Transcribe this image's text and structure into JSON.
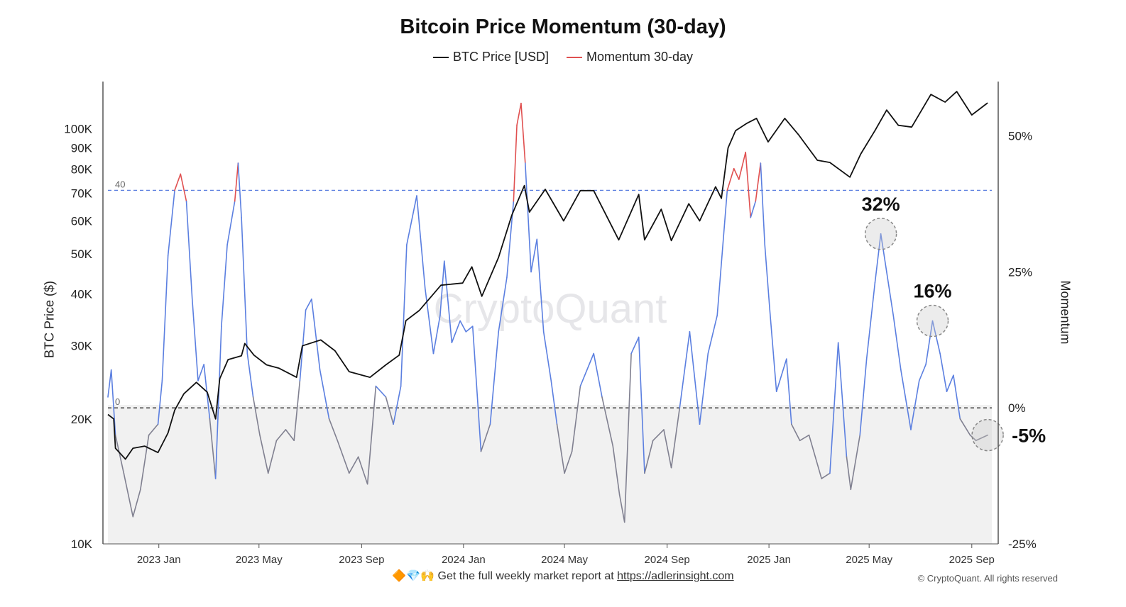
{
  "chart_data": {
    "type": "line",
    "title": "Bitcoin Price Momentum (30-day)",
    "legend": [
      {
        "label": "BTC Price [USD]",
        "color": "#111111"
      },
      {
        "label": "Momentum 30-day",
        "color": "#e05050"
      }
    ],
    "ylabel_left": "BTC Price ($)",
    "ylabel_right": "Momentum",
    "left_axis": {
      "scale": "log",
      "range": [
        10000,
        130000
      ],
      "ticks": [
        {
          "v": 10000,
          "label": "10K"
        },
        {
          "v": 20000,
          "label": "20K"
        },
        {
          "v": 30000,
          "label": "30K"
        },
        {
          "v": 40000,
          "label": "40K"
        },
        {
          "v": 50000,
          "label": "50K"
        },
        {
          "v": 60000,
          "label": "60K"
        },
        {
          "v": 70000,
          "label": "70K"
        },
        {
          "v": 80000,
          "label": "80K"
        },
        {
          "v": 90000,
          "label": "90K"
        },
        {
          "v": 100000,
          "label": "100K"
        }
      ]
    },
    "right_axis": {
      "scale": "linear",
      "range": [
        -25,
        60
      ],
      "ticks": [
        {
          "v": -25,
          "label": "-25%"
        },
        {
          "v": 0,
          "label": "0%"
        },
        {
          "v": 25,
          "label": "25%"
        },
        {
          "v": 50,
          "label": "50%"
        }
      ]
    },
    "x_axis": {
      "range": [
        "2022-11-01",
        "2025-09-25"
      ],
      "ticks": [
        {
          "date": "2023-01-01",
          "label": "2023 Jan"
        },
        {
          "date": "2023-05-01",
          "label": "2023 May"
        },
        {
          "date": "2023-09-01",
          "label": "2023 Sep"
        },
        {
          "date": "2024-01-01",
          "label": "2024 Jan"
        },
        {
          "date": "2024-05-01",
          "label": "2024 May"
        },
        {
          "date": "2024-09-01",
          "label": "2024 Sep"
        },
        {
          "date": "2025-01-01",
          "label": "2025 Jan"
        },
        {
          "date": "2025-05-01",
          "label": "2025 May"
        },
        {
          "date": "2025-09-01",
          "label": "2025 Sep"
        }
      ]
    },
    "reference_lines": [
      {
        "value": 40,
        "label": "40",
        "color": "#5b7fe0",
        "style": "dashed"
      },
      {
        "value": 0,
        "label": "0",
        "color": "#333333",
        "style": "dashed"
      }
    ],
    "momentum_colors": {
      "above_40": "#e05050",
      "positive": "#5b7fe0",
      "negative": "#808090"
    },
    "price_series": {
      "name": "BTC Price [USD]",
      "color": "#111111",
      "points": [
        [
          "2022-11-01",
          20500
        ],
        [
          "2022-11-08",
          20000
        ],
        [
          "2022-11-10",
          17000
        ],
        [
          "2022-11-22",
          16000
        ],
        [
          "2022-12-01",
          17000
        ],
        [
          "2022-12-15",
          17200
        ],
        [
          "2022-12-31",
          16600
        ],
        [
          "2023-01-12",
          18500
        ],
        [
          "2023-01-20",
          21000
        ],
        [
          "2023-01-31",
          23000
        ],
        [
          "2023-02-15",
          24500
        ],
        [
          "2023-02-28",
          23200
        ],
        [
          "2023-03-10",
          20000
        ],
        [
          "2023-03-15",
          25000
        ],
        [
          "2023-03-25",
          27800
        ],
        [
          "2023-04-10",
          28400
        ],
        [
          "2023-04-14",
          30400
        ],
        [
          "2023-04-25",
          28500
        ],
        [
          "2023-05-10",
          27000
        ],
        [
          "2023-05-25",
          26500
        ],
        [
          "2023-06-15",
          25200
        ],
        [
          "2023-06-22",
          30000
        ],
        [
          "2023-07-14",
          31000
        ],
        [
          "2023-07-31",
          29200
        ],
        [
          "2023-08-17",
          26000
        ],
        [
          "2023-09-11",
          25200
        ],
        [
          "2023-09-30",
          27000
        ],
        [
          "2023-10-16",
          28500
        ],
        [
          "2023-10-24",
          34500
        ],
        [
          "2023-11-09",
          36500
        ],
        [
          "2023-12-05",
          42000
        ],
        [
          "2023-12-31",
          42500
        ],
        [
          "2024-01-11",
          46500
        ],
        [
          "2024-01-23",
          39500
        ],
        [
          "2024-02-12",
          49000
        ],
        [
          "2024-02-28",
          62000
        ],
        [
          "2024-03-14",
          73000
        ],
        [
          "2024-03-20",
          63000
        ],
        [
          "2024-04-08",
          71500
        ],
        [
          "2024-04-30",
          60000
        ],
        [
          "2024-05-20",
          71000
        ],
        [
          "2024-06-05",
          71000
        ],
        [
          "2024-07-05",
          54000
        ],
        [
          "2024-07-29",
          69500
        ],
        [
          "2024-08-05",
          54000
        ],
        [
          "2024-08-25",
          64000
        ],
        [
          "2024-09-06",
          53800
        ],
        [
          "2024-09-27",
          66000
        ],
        [
          "2024-10-10",
          60000
        ],
        [
          "2024-10-29",
          72500
        ],
        [
          "2024-11-05",
          68000
        ],
        [
          "2024-11-13",
          90000
        ],
        [
          "2024-11-22",
          99000
        ],
        [
          "2024-12-05",
          103000
        ],
        [
          "2024-12-17",
          106000
        ],
        [
          "2024-12-31",
          93000
        ],
        [
          "2025-01-20",
          106000
        ],
        [
          "2025-02-05",
          97000
        ],
        [
          "2025-02-28",
          84000
        ],
        [
          "2025-03-15",
          83000
        ],
        [
          "2025-04-08",
          76500
        ],
        [
          "2025-04-21",
          87000
        ],
        [
          "2025-05-08",
          99000
        ],
        [
          "2025-05-22",
          111000
        ],
        [
          "2025-06-05",
          102000
        ],
        [
          "2025-06-21",
          101000
        ],
        [
          "2025-07-14",
          121000
        ],
        [
          "2025-07-31",
          116000
        ],
        [
          "2025-08-14",
          123000
        ],
        [
          "2025-09-01",
          108000
        ],
        [
          "2025-09-20",
          115500
        ]
      ]
    },
    "momentum_series": {
      "name": "Momentum 30-day",
      "unit": "%",
      "points": [
        [
          "2022-11-01",
          2
        ],
        [
          "2022-11-05",
          7
        ],
        [
          "2022-11-10",
          -5
        ],
        [
          "2022-11-20",
          -12
        ],
        [
          "2022-12-01",
          -20
        ],
        [
          "2022-12-10",
          -15
        ],
        [
          "2022-12-20",
          -5
        ],
        [
          "2022-12-31",
          -3
        ],
        [
          "2023-01-05",
          5
        ],
        [
          "2023-01-12",
          28
        ],
        [
          "2023-01-20",
          40
        ],
        [
          "2023-01-27",
          43
        ],
        [
          "2023-02-03",
          38
        ],
        [
          "2023-02-10",
          20
        ],
        [
          "2023-02-17",
          5
        ],
        [
          "2023-02-24",
          8
        ],
        [
          "2023-03-03",
          -2
        ],
        [
          "2023-03-10",
          -13
        ],
        [
          "2023-03-17",
          15
        ],
        [
          "2023-03-24",
          30
        ],
        [
          "2023-04-02",
          38
        ],
        [
          "2023-04-06",
          45
        ],
        [
          "2023-04-10",
          35
        ],
        [
          "2023-04-17",
          10
        ],
        [
          "2023-04-24",
          2
        ],
        [
          "2023-05-02",
          -5
        ],
        [
          "2023-05-12",
          -12
        ],
        [
          "2023-05-22",
          -6
        ],
        [
          "2023-06-02",
          -4
        ],
        [
          "2023-06-12",
          -6
        ],
        [
          "2023-06-19",
          5
        ],
        [
          "2023-06-26",
          18
        ],
        [
          "2023-07-03",
          20
        ],
        [
          "2023-07-13",
          7
        ],
        [
          "2023-07-24",
          -2
        ],
        [
          "2023-08-03",
          -6
        ],
        [
          "2023-08-17",
          -12
        ],
        [
          "2023-08-28",
          -9
        ],
        [
          "2023-09-08",
          -14
        ],
        [
          "2023-09-18",
          4
        ],
        [
          "2023-09-30",
          2
        ],
        [
          "2023-10-09",
          -3
        ],
        [
          "2023-10-18",
          4
        ],
        [
          "2023-10-25",
          30
        ],
        [
          "2023-11-06",
          39
        ],
        [
          "2023-11-16",
          22
        ],
        [
          "2023-11-26",
          10
        ],
        [
          "2023-12-04",
          17
        ],
        [
          "2023-12-09",
          27
        ],
        [
          "2023-12-18",
          12
        ],
        [
          "2023-12-28",
          16
        ],
        [
          "2024-01-04",
          14
        ],
        [
          "2024-01-12",
          15
        ],
        [
          "2024-01-22",
          -8
        ],
        [
          "2024-02-02",
          -3
        ],
        [
          "2024-02-12",
          14
        ],
        [
          "2024-02-22",
          24
        ],
        [
          "2024-03-01",
          38
        ],
        [
          "2024-03-05",
          52
        ],
        [
          "2024-03-10",
          56
        ],
        [
          "2024-03-15",
          45
        ],
        [
          "2024-03-22",
          25
        ],
        [
          "2024-03-29",
          31
        ],
        [
          "2024-04-06",
          14
        ],
        [
          "2024-04-15",
          5
        ],
        [
          "2024-04-22",
          -3
        ],
        [
          "2024-05-01",
          -12
        ],
        [
          "2024-05-10",
          -8
        ],
        [
          "2024-05-20",
          4
        ],
        [
          "2024-05-28",
          7
        ],
        [
          "2024-06-05",
          10
        ],
        [
          "2024-06-15",
          2
        ],
        [
          "2024-06-28",
          -7
        ],
        [
          "2024-07-06",
          -16
        ],
        [
          "2024-07-12",
          -21
        ],
        [
          "2024-07-20",
          10
        ],
        [
          "2024-07-29",
          13
        ],
        [
          "2024-08-05",
          -12
        ],
        [
          "2024-08-15",
          -6
        ],
        [
          "2024-08-28",
          -4
        ],
        [
          "2024-09-06",
          -11
        ],
        [
          "2024-09-16",
          0
        ],
        [
          "2024-09-28",
          14
        ],
        [
          "2024-10-10",
          -3
        ],
        [
          "2024-10-20",
          10
        ],
        [
          "2024-10-31",
          17
        ],
        [
          "2024-11-12",
          40
        ],
        [
          "2024-11-20",
          44
        ],
        [
          "2024-11-26",
          42
        ],
        [
          "2024-12-04",
          47
        ],
        [
          "2024-12-10",
          35
        ],
        [
          "2024-12-16",
          38
        ],
        [
          "2024-12-22",
          45
        ],
        [
          "2024-12-27",
          30
        ],
        [
          "2025-01-02",
          18
        ],
        [
          "2025-01-10",
          3
        ],
        [
          "2025-01-22",
          9
        ],
        [
          "2025-01-28",
          -3
        ],
        [
          "2025-02-07",
          -6
        ],
        [
          "2025-02-18",
          -5
        ],
        [
          "2025-03-05",
          -13
        ],
        [
          "2025-03-15",
          -12
        ],
        [
          "2025-03-25",
          12
        ],
        [
          "2025-04-04",
          -9
        ],
        [
          "2025-04-09",
          -15
        ],
        [
          "2025-04-20",
          -5
        ],
        [
          "2025-04-28",
          9
        ],
        [
          "2025-05-08",
          23
        ],
        [
          "2025-05-15",
          32
        ],
        [
          "2025-05-22",
          25
        ],
        [
          "2025-05-30",
          17
        ],
        [
          "2025-06-08",
          7
        ],
        [
          "2025-06-20",
          -4
        ],
        [
          "2025-06-30",
          5
        ],
        [
          "2025-07-08",
          8
        ],
        [
          "2025-07-16",
          16
        ],
        [
          "2025-07-25",
          10
        ],
        [
          "2025-08-02",
          3
        ],
        [
          "2025-08-10",
          6
        ],
        [
          "2025-08-18",
          -2
        ],
        [
          "2025-08-30",
          -5
        ],
        [
          "2025-09-06",
          -6
        ],
        [
          "2025-09-20",
          -5
        ]
      ]
    },
    "annotations": [
      {
        "label": "32%",
        "date": "2025-05-15",
        "value": 32
      },
      {
        "label": "16%",
        "date": "2025-07-16",
        "value": 16
      },
      {
        "label": "-5%",
        "date": "2025-09-20",
        "value": -5
      }
    ],
    "watermark": "CryptoQuant"
  },
  "footer": {
    "prefix": "🔶💎🙌 Get the full weekly market report at ",
    "link": "https://adlerinsight.com",
    "credit": "© CryptoQuant. All rights reserved"
  }
}
